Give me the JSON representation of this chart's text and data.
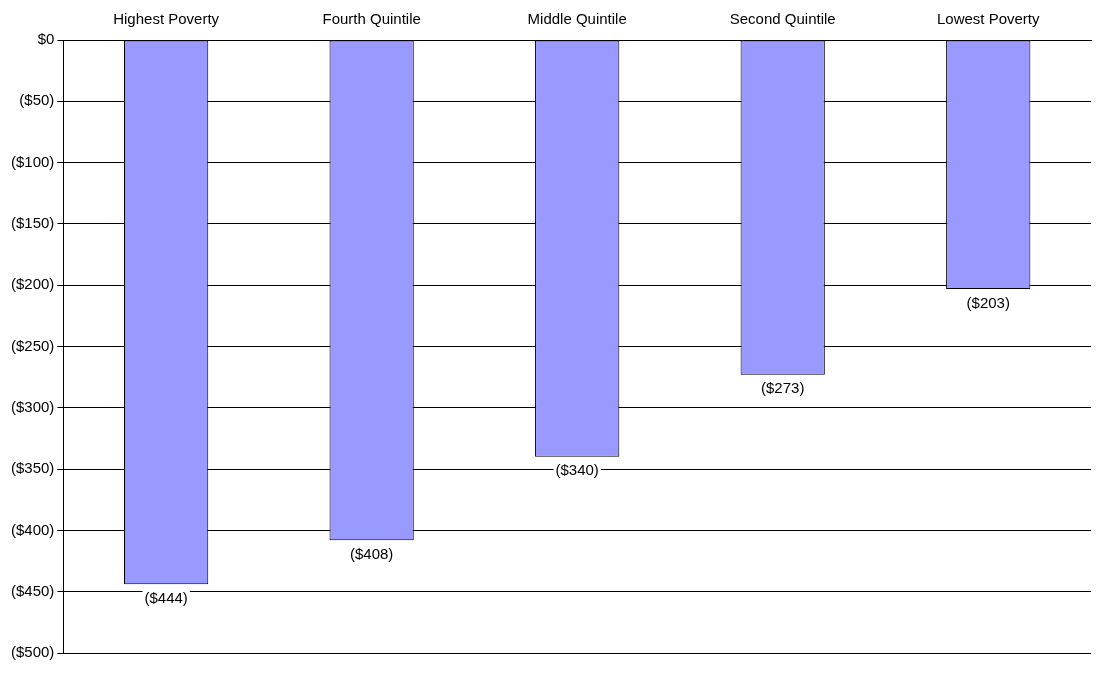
{
  "chart_data": {
    "type": "bar",
    "categories": [
      "Highest Poverty",
      "Fourth Quintile",
      "Middle Quintile",
      "Second Quintile",
      "Lowest Poverty"
    ],
    "values": [
      -444,
      -408,
      -340,
      -273,
      -203
    ],
    "value_labels": [
      "($444)",
      "($408)",
      "($340)",
      "($273)",
      "($203)"
    ],
    "color": "#9999ff",
    "ylim": [
      -500,
      0
    ],
    "yticks": [
      {
        "value": 0,
        "label": "$0"
      },
      {
        "value": -50,
        "label": "($50)"
      },
      {
        "value": -100,
        "label": "($100)"
      },
      {
        "value": -150,
        "label": "($150)"
      },
      {
        "value": -200,
        "label": "($200)"
      },
      {
        "value": -250,
        "label": "($250)"
      },
      {
        "value": -300,
        "label": "($300)"
      },
      {
        "value": -350,
        "label": "($350)"
      },
      {
        "value": -400,
        "label": "($400)"
      },
      {
        "value": -450,
        "label": "($450)"
      },
      {
        "value": -500,
        "label": "($500)"
      }
    ],
    "grid": "y"
  }
}
